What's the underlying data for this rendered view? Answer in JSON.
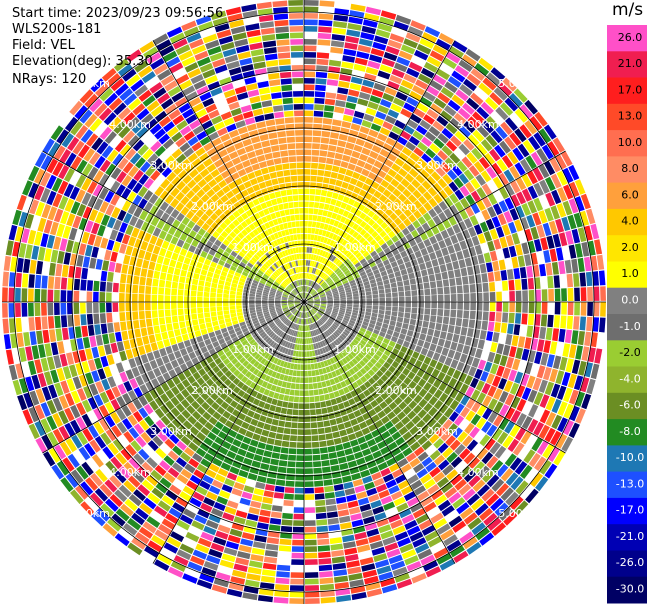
{
  "header": {
    "start_time": "Start time: 2023/09/23 09:56:56",
    "instrument": "WLS200s-181",
    "field": "Field: VEL",
    "elevation": "Elevation(deg): 35.30",
    "nrays": "NRays: 120"
  },
  "colorbar": {
    "unit": "m/s",
    "labels": [
      "26.0",
      "21.0",
      "17.0",
      "13.0",
      "10.0",
      "8.0",
      "6.0",
      "4.0",
      "2.0",
      "1.0",
      "0.0",
      "-1.0",
      "-2.0",
      "-4.0",
      "-6.0",
      "-8.0",
      "-10.0",
      "-13.0",
      "-17.0",
      "-21.0",
      "-26.0",
      "-30.0"
    ],
    "colors": [
      "#ff50c8",
      "#f01e50",
      "#ff1e1e",
      "#ff4a28",
      "#ff6e50",
      "#ff8c64",
      "#ffa03c",
      "#ffc800",
      "#ffe600",
      "#ffff00",
      "#808080",
      "#6e6e6e",
      "#9acd32",
      "#8fb42d",
      "#6b8e23",
      "#228b22",
      "#1e78b4",
      "#1e50ff",
      "#0000ff",
      "#0000b4",
      "#00008b",
      "#000064"
    ]
  },
  "chart_data": {
    "type": "polar radial-velocity scan (PPI)",
    "field": "VEL",
    "units": "m/s",
    "rays": 120,
    "range_labels": [
      "1.00km",
      "2.00km",
      "3.00km",
      "4.00km",
      "5.00km"
    ],
    "range_rings_km": [
      1,
      2,
      3,
      4,
      5
    ],
    "velocity_zones": [
      {
        "range_km": [
          0,
          1.0
        ],
        "north": 2,
        "south": -2,
        "east": -1,
        "west": 0
      },
      {
        "range_km": [
          1.0,
          3.6
        ],
        "north": 4,
        "south": -6,
        "east": 0,
        "west": 0
      },
      {
        "range_km": [
          3.6,
          5.8
        ],
        "north": "noise",
        "south": "noise",
        "east": "noise",
        "west": "noise"
      }
    ],
    "grid": true
  }
}
